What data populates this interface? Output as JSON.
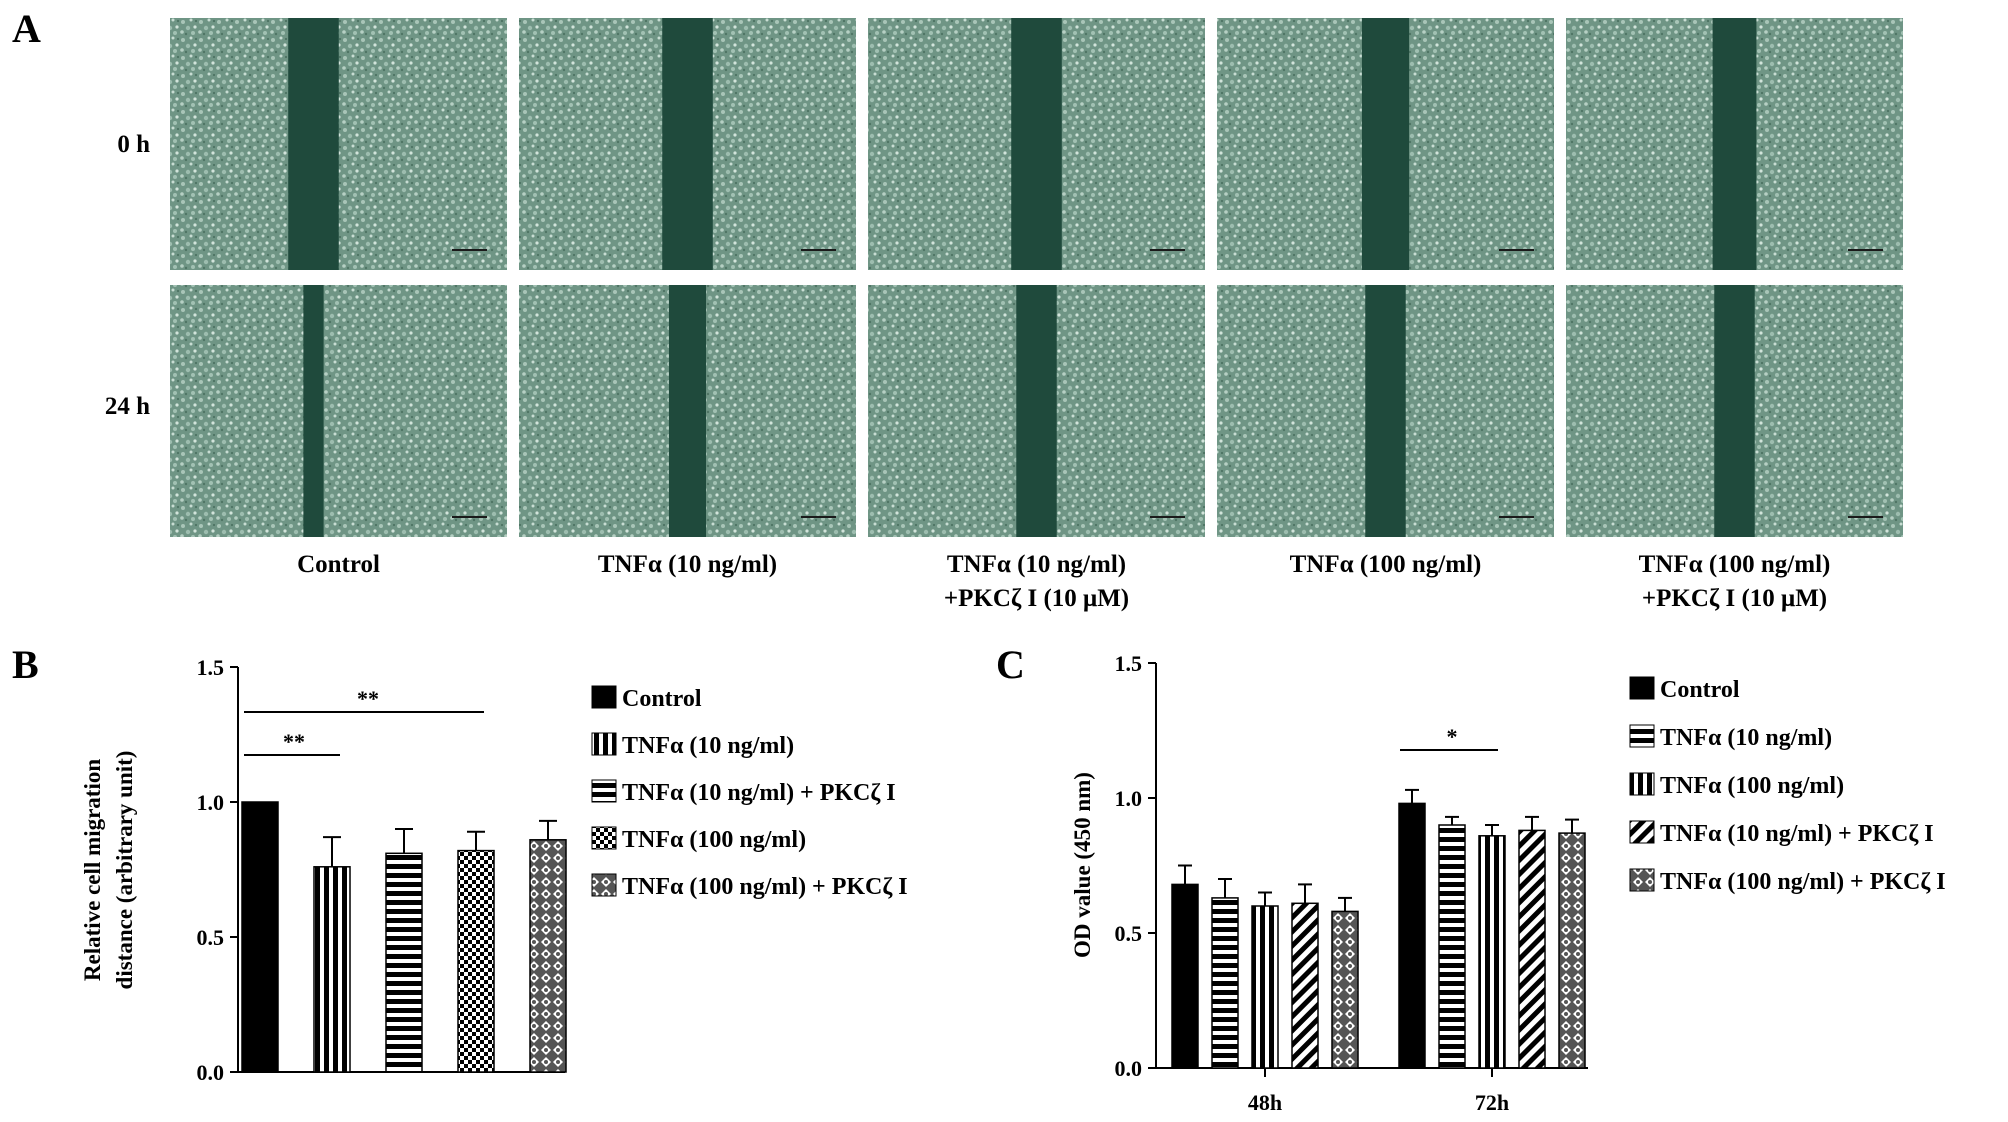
{
  "panel_a": {
    "letter": "A",
    "rows": [
      "0 h",
      "24 h"
    ],
    "columns": [
      {
        "line1": "Control",
        "line2": ""
      },
      {
        "line1": "TNFα (10 ng/ml)",
        "line2": ""
      },
      {
        "line1": "TNFα (10 ng/ml)",
        "line2": "+PKCζ I (10 μM)"
      },
      {
        "line1": "TNFα (100 ng/ml)",
        "line2": ""
      },
      {
        "line1": "TNFα (100 ng/ml)",
        "line2": "+PKCζ I (10 μM)"
      }
    ],
    "gap_width_fraction": [
      [
        0.15,
        0.06
      ],
      [
        0.15,
        0.11
      ],
      [
        0.15,
        0.12
      ],
      [
        0.14,
        0.12
      ],
      [
        0.13,
        0.12
      ]
    ]
  },
  "chart_data": [
    {
      "panel": "B",
      "type": "bar",
      "ylabel_line1": "Relative cell migration",
      "ylabel_line2": "distance (arbitrary unit)",
      "ylim": [
        0,
        1.5
      ],
      "yticks": [
        "0.0",
        "0.5",
        "1.0",
        "1.5"
      ],
      "series": [
        {
          "name": "Control",
          "pattern": "solid",
          "value": 1.0,
          "error": 0.0
        },
        {
          "name": "TNFα (10 ng/ml)",
          "pattern": "vertical",
          "value": 0.76,
          "error": 0.11
        },
        {
          "name": "TNFα (10 ng/ml) + PKCζ I",
          "pattern": "horizontal",
          "value": 0.81,
          "error": 0.09
        },
        {
          "name": "TNFα (100 ng/ml)",
          "pattern": "checker",
          "value": 0.82,
          "error": 0.07
        },
        {
          "name": "TNFα (100 ng/ml) + PKCζ I",
          "pattern": "diamond",
          "value": 0.86,
          "error": 0.07
        }
      ],
      "significance": [
        {
          "from": 0,
          "to": 1,
          "label": "**"
        },
        {
          "from": 0,
          "to": 3,
          "label": "**"
        }
      ]
    },
    {
      "panel": "C",
      "type": "bar",
      "ylabel": "OD value (450 nm)",
      "ylim": [
        0,
        1.5
      ],
      "yticks": [
        "0.0",
        "0.5",
        "1.0",
        "1.5"
      ],
      "categories": [
        "48h",
        "72h"
      ],
      "series": [
        {
          "name": "Control",
          "pattern": "solid",
          "values": [
            0.68,
            0.98
          ],
          "errors": [
            0.07,
            0.05
          ]
        },
        {
          "name": "TNFα (10 ng/ml)",
          "pattern": "horizontal",
          "values": [
            0.63,
            0.9
          ],
          "errors": [
            0.07,
            0.03
          ]
        },
        {
          "name": "TNFα (100 ng/ml)",
          "pattern": "vertical",
          "values": [
            0.6,
            0.86
          ],
          "errors": [
            0.05,
            0.04
          ]
        },
        {
          "name": "TNFα (10 ng/ml) + PKCζ I",
          "pattern": "diagonal",
          "values": [
            0.61,
            0.88
          ],
          "errors": [
            0.07,
            0.05
          ]
        },
        {
          "name": "TNFα (100 ng/ml) + PKCζ I",
          "pattern": "diamond",
          "values": [
            0.58,
            0.87
          ],
          "errors": [
            0.05,
            0.05
          ]
        }
      ],
      "significance": [
        {
          "category": 1,
          "from": 0,
          "to": 2,
          "label": "*"
        }
      ]
    }
  ]
}
